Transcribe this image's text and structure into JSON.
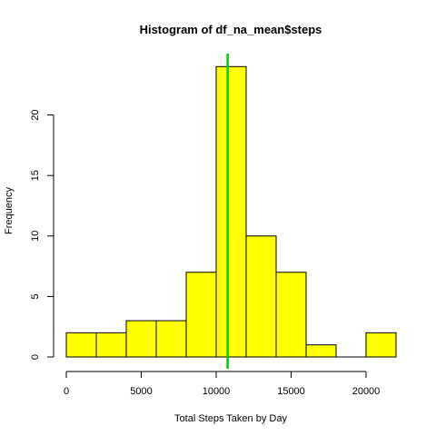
{
  "chart_data": {
    "type": "bar",
    "title": "Histogram of df_na_mean$steps",
    "xlabel": "Total Steps Taken by Day",
    "ylabel": "Frequency",
    "bin_edges": [
      0,
      2000,
      4000,
      6000,
      8000,
      10000,
      12000,
      14000,
      16000,
      18000,
      20000,
      22000
    ],
    "values": [
      2,
      2,
      3,
      3,
      7,
      24,
      10,
      7,
      1,
      0,
      2
    ],
    "xlim": [
      0,
      22000
    ],
    "ylim": [
      0,
      25
    ],
    "x_ticks": [
      0,
      5000,
      10000,
      15000,
      20000
    ],
    "x_tick_labels": [
      "0",
      "5000",
      "10000",
      "15000",
      "20000"
    ],
    "y_ticks": [
      0,
      5,
      10,
      15,
      20
    ],
    "y_tick_labels": [
      "0",
      "5",
      "10",
      "15",
      "20"
    ],
    "mean_line": 10766,
    "bar_color": "#ffff00",
    "bar_border_color": "#000000",
    "line_color": "#00cc00",
    "grid": false,
    "legend": "none"
  }
}
